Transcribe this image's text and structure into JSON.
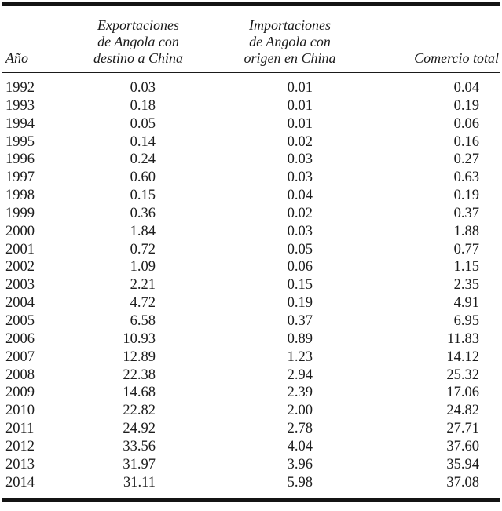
{
  "document": {
    "language": "es",
    "kind": "trade-statistics-table"
  },
  "colors": {
    "background": "#ffffff",
    "text": "#1c1c1c",
    "rule": "#141414"
  },
  "table": {
    "headers": {
      "year": "Año",
      "exports_lines": [
        "Exportaciones",
        "de Angola con",
        "destino a China"
      ],
      "imports_lines": [
        "Importaciones",
        "de Angola con",
        "origen en China"
      ],
      "total": "Comercio total"
    },
    "rows": [
      {
        "year": "1992",
        "exports": "0.03",
        "imports": "0.01",
        "total": "0.04"
      },
      {
        "year": "1993",
        "exports": "0.18",
        "imports": "0.01",
        "total": "0.19"
      },
      {
        "year": "1994",
        "exports": "0.05",
        "imports": "0.01",
        "total": "0.06"
      },
      {
        "year": "1995",
        "exports": "0.14",
        "imports": "0.02",
        "total": "0.16"
      },
      {
        "year": "1996",
        "exports": "0.24",
        "imports": "0.03",
        "total": "0.27"
      },
      {
        "year": "1997",
        "exports": "0.60",
        "imports": "0.03",
        "total": "0.63"
      },
      {
        "year": "1998",
        "exports": "0.15",
        "imports": "0.04",
        "total": "0.19"
      },
      {
        "year": "1999",
        "exports": "0.36",
        "imports": "0.02",
        "total": "0.37"
      },
      {
        "year": "2000",
        "exports": "1.84",
        "imports": "0.03",
        "total": "1.88"
      },
      {
        "year": "2001",
        "exports": "0.72",
        "imports": "0.05",
        "total": "0.77"
      },
      {
        "year": "2002",
        "exports": "1.09",
        "imports": "0.06",
        "total": "1.15"
      },
      {
        "year": "2003",
        "exports": "2.21",
        "imports": "0.15",
        "total": "2.35"
      },
      {
        "year": "2004",
        "exports": "4.72",
        "imports": "0.19",
        "total": "4.91"
      },
      {
        "year": "2005",
        "exports": "6.58",
        "imports": "0.37",
        "total": "6.95"
      },
      {
        "year": "2006",
        "exports": "10.93",
        "imports": "0.89",
        "total": "11.83"
      },
      {
        "year": "2007",
        "exports": "12.89",
        "imports": "1.23",
        "total": "14.12"
      },
      {
        "year": "2008",
        "exports": "22.38",
        "imports": "2.94",
        "total": "25.32"
      },
      {
        "year": "2009",
        "exports": "14.68",
        "imports": "2.39",
        "total": "17.06"
      },
      {
        "year": "2010",
        "exports": "22.82",
        "imports": "2.00",
        "total": "24.82"
      },
      {
        "year": "2011",
        "exports": "24.92",
        "imports": "2.78",
        "total": "27.71"
      },
      {
        "year": "2012",
        "exports": "33.56",
        "imports": "4.04",
        "total": "37.60"
      },
      {
        "year": "2013",
        "exports": "31.97",
        "imports": "3.96",
        "total": "35.94"
      },
      {
        "year": "2014",
        "exports": "31.11",
        "imports": "5.98",
        "total": "37.08"
      }
    ]
  }
}
